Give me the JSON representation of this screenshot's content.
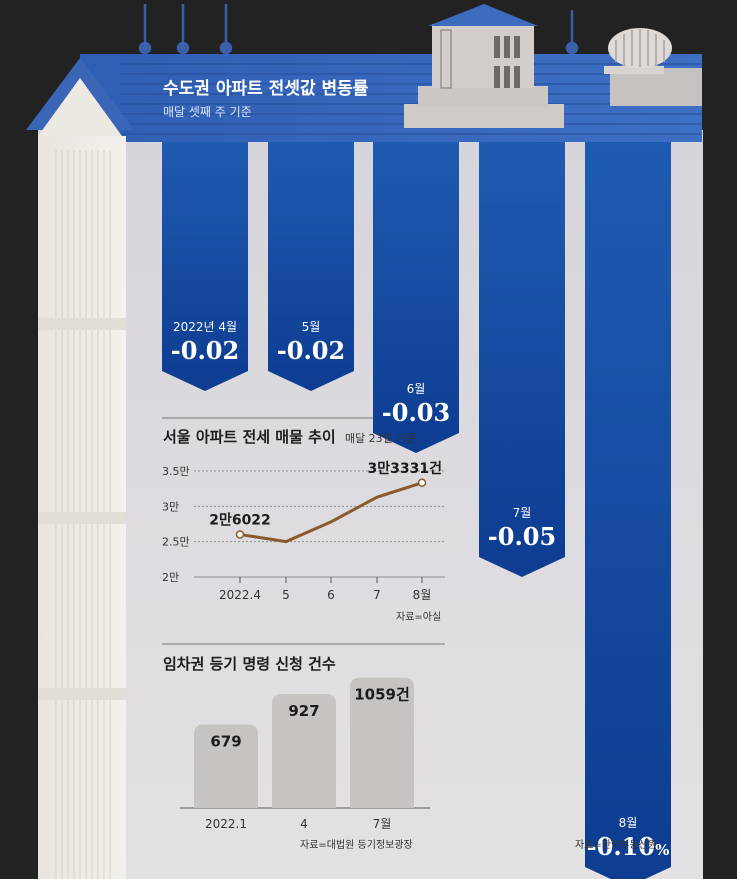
{
  "header": {
    "title": "수도권 아파트 전셋값 변동률",
    "subtitle": "매달 셋째 주 기준"
  },
  "chart_data": [
    {
      "type": "bar",
      "title": "수도권 아파트 전셋값 변동률",
      "subtitle": "매달 셋째 주 기준",
      "categories": [
        "2022년 4월",
        "5월",
        "6월",
        "7월",
        "8월"
      ],
      "values": [
        -0.02,
        -0.02,
        -0.03,
        -0.05,
        -0.1
      ],
      "value_labels": [
        "-0.02",
        "-0.02",
        "-0.03",
        "-0.05",
        "-0.10"
      ],
      "unit": "%",
      "source": "자료=한국부동산원",
      "colors": {
        "bar_top": "#1f4f9e",
        "bar_bottom": "#0d3c91",
        "text": "#ffffff"
      }
    },
    {
      "type": "line",
      "title": "서울 아파트 전세 매물 추이",
      "note": "매달 23일 기준",
      "x": [
        "2022.4",
        "5",
        "6",
        "7",
        "8월"
      ],
      "y": [
        26022,
        25000,
        27800,
        31300,
        33331
      ],
      "y_ticks": [
        "3.5만",
        "3만",
        "2.5만",
        "2만"
      ],
      "ylim": [
        20000,
        35000
      ],
      "annotations": [
        {
          "index": 0,
          "label": "2만6022"
        },
        {
          "index": 4,
          "label": "3만3331건"
        }
      ],
      "source": "자료=아실",
      "colors": {
        "line": "#8a5a2b",
        "grid": "#8e8e96"
      }
    },
    {
      "type": "bar",
      "title": "임차권 등기 명령 신청 건수",
      "categories": [
        "2022.1",
        "4",
        "7월"
      ],
      "values": [
        679,
        927,
        1059
      ],
      "value_labels": [
        "679",
        "927",
        "1059건"
      ],
      "source": "자료=대법원 등기정보광장",
      "colors": {
        "bar": "#c7c3c1",
        "text": "#1c1c1c"
      }
    }
  ]
}
